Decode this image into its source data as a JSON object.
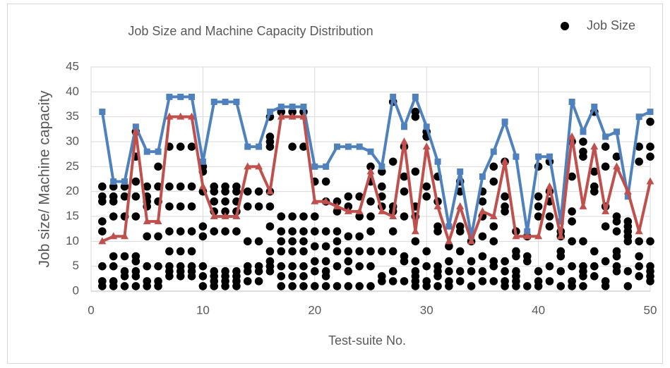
{
  "chart_data": {
    "type": "scatter",
    "title": "Job Size and Machine Capacity Distribution",
    "xlabel": "Test-suite No.",
    "ylabel": "Job size/ Machine capacity",
    "xlim": [
      0,
      50
    ],
    "ylim": [
      0,
      45
    ],
    "xticks": [
      0,
      10,
      20,
      30,
      40,
      50
    ],
    "yticks": [
      0,
      5,
      10,
      15,
      20,
      25,
      30,
      35,
      40,
      45
    ],
    "grid": true,
    "legend": "top-right",
    "series": [
      {
        "name": "Job Size",
        "type": "scatter",
        "color": "#000000",
        "x": [
          1,
          1,
          1,
          1,
          1,
          1,
          1,
          1,
          2,
          2,
          2,
          2,
          2,
          2,
          2,
          2,
          3,
          3,
          3,
          3,
          3,
          3,
          3,
          4,
          4,
          4,
          4,
          4,
          4,
          4,
          4,
          4,
          4,
          5,
          5,
          5,
          5,
          5,
          5,
          5,
          5,
          6,
          6,
          6,
          6,
          6,
          6,
          6,
          7,
          7,
          7,
          7,
          7,
          7,
          7,
          7,
          8,
          8,
          8,
          8,
          8,
          8,
          8,
          8,
          9,
          9,
          9,
          9,
          9,
          9,
          9,
          9,
          10,
          10,
          10,
          10,
          10,
          10,
          10,
          10,
          11,
          11,
          11,
          11,
          11,
          11,
          11,
          11,
          11,
          12,
          12,
          12,
          12,
          12,
          12,
          12,
          12,
          12,
          13,
          13,
          13,
          13,
          13,
          13,
          13,
          13,
          13,
          14,
          14,
          14,
          14,
          14,
          14,
          15,
          15,
          15,
          15,
          15,
          15,
          16,
          16,
          16,
          16,
          16,
          16,
          16,
          16,
          16,
          16,
          16,
          17,
          17,
          17,
          17,
          17,
          17,
          17,
          17,
          18,
          18,
          18,
          18,
          18,
          18,
          18,
          18,
          18,
          19,
          19,
          19,
          19,
          19,
          19,
          19,
          19,
          19,
          20,
          20,
          20,
          20,
          20,
          20,
          20,
          21,
          21,
          21,
          21,
          21,
          21,
          21,
          21,
          22,
          22,
          22,
          22,
          22,
          22,
          22,
          23,
          23,
          23,
          23,
          23,
          23,
          23,
          24,
          24,
          24,
          24,
          24,
          24,
          25,
          25,
          25,
          25,
          25,
          25,
          25,
          25,
          26,
          26,
          26,
          26,
          26,
          26,
          26,
          27,
          27,
          27,
          27,
          27,
          27,
          27,
          27,
          28,
          28,
          28,
          28,
          28,
          28,
          28,
          29,
          29,
          29,
          29,
          29,
          29,
          29,
          29,
          29,
          29,
          29,
          30,
          30,
          30,
          30,
          30,
          30,
          30,
          30,
          31,
          31,
          31,
          31,
          31,
          31,
          31,
          31,
          32,
          32,
          32,
          32,
          32,
          33,
          33,
          33,
          33,
          33,
          33,
          33,
          34,
          34,
          34,
          34,
          35,
          35,
          35,
          35,
          35,
          35,
          35,
          36,
          36,
          36,
          36,
          36,
          36,
          36,
          37,
          37,
          37,
          37,
          37,
          37,
          37,
          37,
          38,
          38,
          38,
          38,
          38,
          38,
          38,
          39,
          39,
          39,
          39,
          40,
          40,
          40,
          40,
          40,
          40,
          40,
          41,
          41,
          41,
          41,
          41,
          41,
          41,
          42,
          42,
          42,
          42,
          42,
          42,
          43,
          43,
          43,
          43,
          43,
          43,
          43,
          43,
          44,
          44,
          44,
          44,
          44,
          44,
          44,
          44,
          45,
          45,
          45,
          45,
          45,
          45,
          45,
          46,
          46,
          46,
          46,
          46,
          46,
          46,
          47,
          47,
          47,
          47,
          47,
          47,
          47,
          47,
          48,
          48,
          48,
          48,
          48,
          48,
          48,
          49,
          49,
          49,
          49,
          49,
          49,
          50,
          50,
          50,
          50,
          50,
          50,
          50,
          50
        ],
        "values": [
          1,
          2,
          5,
          12,
          14,
          18,
          19,
          21,
          1,
          2,
          5,
          7,
          15,
          18,
          19,
          21,
          1,
          3,
          4,
          7,
          15,
          19,
          21,
          1,
          3,
          4,
          6,
          7,
          15,
          19,
          22,
          27,
          32,
          1,
          2,
          5,
          11,
          17,
          18,
          19,
          21,
          1,
          2,
          5,
          11,
          18,
          21,
          25,
          3,
          4,
          5,
          8,
          12,
          17,
          21,
          29,
          3,
          4,
          5,
          8,
          12,
          17,
          21,
          29,
          3,
          4,
          5,
          8,
          12,
          17,
          21,
          29,
          1,
          3,
          5,
          11,
          13,
          20,
          24,
          25,
          1,
          2,
          3,
          4,
          12,
          16,
          18,
          20,
          21,
          1,
          2,
          3,
          4,
          12,
          16,
          18,
          20,
          21,
          1,
          2,
          3,
          4,
          12,
          16,
          18,
          20,
          21,
          2,
          4,
          5,
          10,
          17,
          20,
          2,
          4,
          5,
          10,
          17,
          20,
          4,
          5,
          6,
          8,
          13,
          17,
          20,
          29,
          30,
          31,
          35,
          1,
          3,
          5,
          8,
          10,
          12,
          15,
          36,
          1,
          3,
          5,
          8,
          10,
          12,
          15,
          29,
          36,
          1,
          3,
          5,
          8,
          10,
          12,
          15,
          29,
          36,
          1,
          4,
          6,
          9,
          12,
          15,
          22,
          1,
          3,
          4,
          6,
          9,
          12,
          18,
          22,
          1,
          5,
          8,
          10,
          12,
          16,
          18,
          1,
          4,
          6,
          8,
          11,
          17,
          19,
          1,
          5,
          8,
          11,
          15,
          19,
          1,
          5,
          8,
          12,
          15,
          18,
          22,
          25,
          2,
          3,
          8,
          17,
          19,
          21,
          24,
          2,
          4,
          8,
          12,
          16,
          17,
          26,
          38,
          2,
          6,
          7,
          15,
          20,
          23,
          29,
          1,
          2,
          3,
          4,
          6,
          10,
          15,
          17,
          24,
          35,
          36,
          1,
          2,
          5,
          8,
          19,
          21,
          31,
          32,
          1,
          3,
          4,
          5,
          12,
          13,
          18,
          23,
          1,
          2,
          4,
          6,
          9,
          2,
          4,
          8,
          12,
          13,
          20,
          22,
          1,
          4,
          6,
          10,
          2,
          4,
          7,
          11,
          15,
          18,
          20,
          2,
          5,
          6,
          10,
          13,
          22,
          25,
          1,
          2,
          4,
          6,
          16,
          17,
          19,
          26,
          1,
          2,
          3,
          4,
          7,
          8,
          12,
          1,
          6,
          7,
          11,
          1,
          2,
          4,
          15,
          17,
          19,
          25,
          2,
          5,
          13,
          15,
          18,
          20,
          26,
          1,
          4,
          7,
          8,
          11,
          12,
          1,
          2,
          5,
          10,
          14,
          16,
          23,
          30,
          1,
          3,
          4,
          5,
          10,
          27,
          28,
          30,
          3,
          5,
          8,
          20,
          21,
          24,
          36,
          1,
          2,
          6,
          13,
          17,
          25,
          29,
          4,
          5,
          7,
          8,
          12,
          14,
          15,
          27,
          1,
          4,
          10,
          11,
          12,
          13,
          14,
          3,
          5,
          7,
          10,
          26,
          29,
          2,
          3,
          4,
          5,
          10,
          27,
          29,
          34
        ]
      },
      {
        "type": "line",
        "color": "#4f81bd",
        "marker": "square",
        "x": [
          1,
          2,
          3,
          4,
          5,
          6,
          7,
          8,
          9,
          10,
          11,
          12,
          13,
          14,
          15,
          16,
          17,
          18,
          19,
          20,
          21,
          22,
          23,
          24,
          25,
          26,
          27,
          28,
          29,
          30,
          31,
          32,
          33,
          34,
          35,
          36,
          37,
          38,
          39,
          40,
          41,
          42,
          43,
          44,
          45,
          46,
          47,
          48,
          49,
          50
        ],
        "values": [
          36,
          22,
          22,
          33,
          28,
          28,
          39,
          39,
          39,
          26,
          38,
          38,
          38,
          29,
          29,
          36,
          37,
          37,
          37,
          25,
          25,
          29,
          29,
          29,
          28,
          25,
          39,
          33,
          39,
          33,
          26,
          13,
          24,
          11,
          23,
          28,
          34,
          27,
          12,
          27,
          27,
          14,
          38,
          32,
          37,
          31,
          32,
          19,
          35,
          36
        ]
      },
      {
        "type": "line",
        "color": "#c0504d",
        "marker": "triangle",
        "x": [
          1,
          2,
          3,
          4,
          5,
          6,
          7,
          8,
          9,
          10,
          11,
          12,
          13,
          14,
          15,
          16,
          17,
          18,
          19,
          20,
          21,
          22,
          23,
          24,
          25,
          26,
          27,
          28,
          29,
          30,
          31,
          32,
          33,
          34,
          35,
          36,
          37,
          38,
          39,
          40,
          41,
          42,
          43,
          44,
          45,
          46,
          47,
          48,
          49,
          50
        ],
        "values": [
          10,
          11,
          11,
          32,
          14,
          14,
          35,
          35,
          35,
          21,
          15,
          15,
          15,
          25,
          25,
          20,
          35,
          35,
          35,
          18,
          18,
          17,
          16,
          16,
          24,
          16,
          15,
          30,
          12,
          29,
          17,
          10,
          17,
          10,
          16,
          15,
          26,
          11,
          11,
          11,
          21,
          11,
          31,
          17,
          29,
          16,
          25,
          20,
          12,
          22
        ]
      }
    ]
  }
}
